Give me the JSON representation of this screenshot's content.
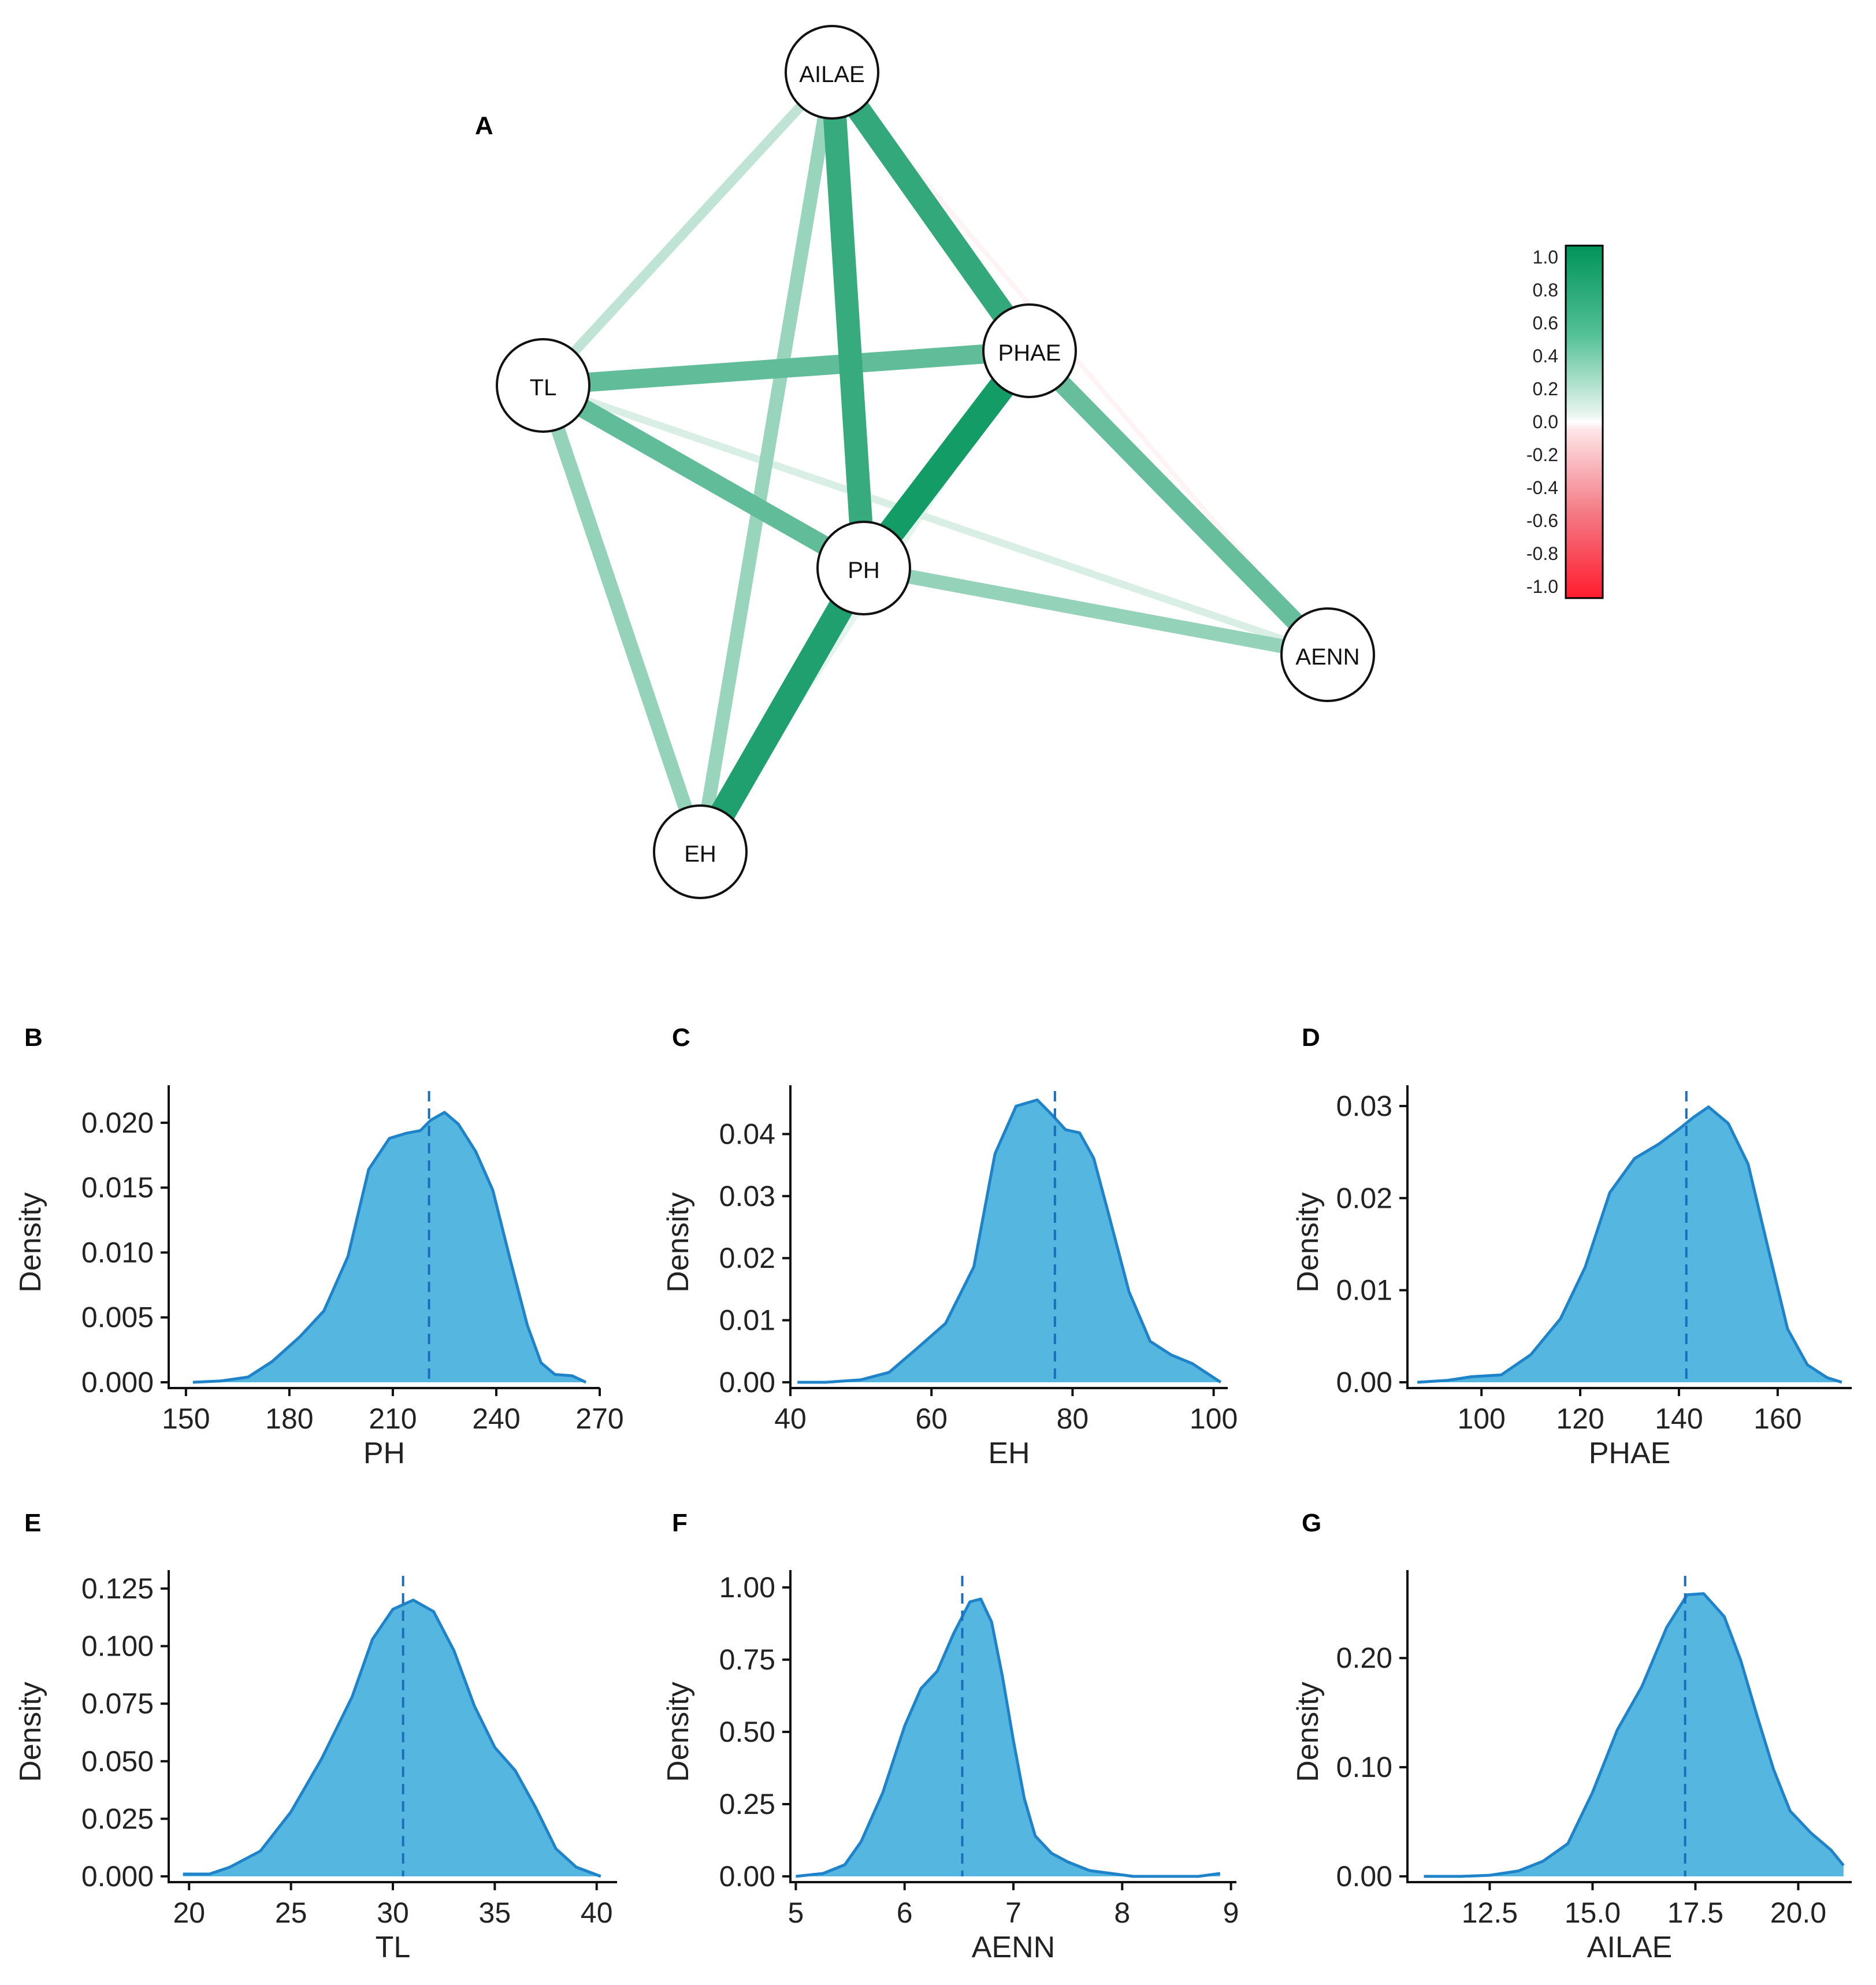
{
  "chart_data": [
    {
      "id": "A",
      "type": "network",
      "title": "A",
      "nodes": [
        "AILAE",
        "TL",
        "PHAE",
        "PH",
        "AENN",
        "EH"
      ],
      "edges": [
        {
          "from": "PHAE",
          "to": "PH",
          "r": 0.92
        },
        {
          "from": "PH",
          "to": "EH",
          "r": 0.88
        },
        {
          "from": "AILAE",
          "to": "PH",
          "r": 0.78
        },
        {
          "from": "AILAE",
          "to": "PHAE",
          "r": 0.8
        },
        {
          "from": "TL",
          "to": "PHAE",
          "r": 0.62
        },
        {
          "from": "TL",
          "to": "PH",
          "r": 0.62
        },
        {
          "from": "PHAE",
          "to": "AENN",
          "r": 0.6
        },
        {
          "from": "PH",
          "to": "AENN",
          "r": 0.42
        },
        {
          "from": "TL",
          "to": "EH",
          "r": 0.42
        },
        {
          "from": "AILAE",
          "to": "EH",
          "r": 0.4
        },
        {
          "from": "AILAE",
          "to": "TL",
          "r": 0.25
        },
        {
          "from": "TL",
          "to": "AENN",
          "r": 0.15
        },
        {
          "from": "PHAE",
          "to": "EH",
          "r": 0.1
        },
        {
          "from": "AILAE",
          "to": "AENN",
          "r": -0.05
        }
      ],
      "legend": {
        "ticks": [
          "1.0",
          "0.8",
          "0.6",
          "0.4",
          "0.2",
          "0.0",
          "-0.2",
          "-0.4",
          "-0.6",
          "-0.8",
          "-1.0"
        ],
        "pos_color": "#00935a",
        "neg_color": "#ff1c2e"
      }
    },
    {
      "id": "B",
      "type": "area",
      "title": "B",
      "xlabel": "PH",
      "ylabel": "Density",
      "xlim": [
        145,
        270
      ],
      "ylim": [
        0,
        0.022
      ],
      "xticks": [
        "150",
        "180",
        "210",
        "240",
        "270"
      ],
      "yticks": [
        "0.000",
        "0.005",
        "0.010",
        "0.015",
        "0.020"
      ],
      "mean": 220.5,
      "x": [
        152,
        160,
        168,
        175,
        183,
        190,
        197,
        203,
        209,
        214,
        218,
        221,
        225,
        229,
        234,
        239,
        244,
        249,
        253,
        257,
        262,
        266
      ],
      "y": [
        0.0,
        0.0001,
        0.0004,
        0.0016,
        0.0035,
        0.0055,
        0.0097,
        0.0164,
        0.0188,
        0.0192,
        0.0194,
        0.0202,
        0.0208,
        0.0199,
        0.0178,
        0.0148,
        0.0095,
        0.0044,
        0.0015,
        0.0006,
        0.0005,
        0.0
      ]
    },
    {
      "id": "C",
      "type": "area",
      "title": "C",
      "xlabel": "EH",
      "ylabel": "Density",
      "xlim": [
        40,
        102
      ],
      "ylim": [
        0,
        0.046
      ],
      "xticks": [
        "40",
        "60",
        "80",
        "100"
      ],
      "yticks": [
        "0.00",
        "0.01",
        "0.02",
        "0.03",
        "0.04"
      ],
      "mean": 77.5,
      "x": [
        41,
        45,
        50,
        54,
        58,
        62,
        66,
        69,
        72,
        75,
        77,
        79,
        81,
        83,
        85,
        88,
        91,
        94,
        97,
        101
      ],
      "y": [
        0.0,
        0.0,
        0.0004,
        0.0016,
        0.0055,
        0.0095,
        0.0186,
        0.0368,
        0.0445,
        0.0455,
        0.0432,
        0.0407,
        0.0402,
        0.0361,
        0.0276,
        0.0146,
        0.0066,
        0.0044,
        0.003,
        0.0
      ]
    },
    {
      "id": "D",
      "type": "area",
      "title": "D",
      "xlabel": "PHAE",
      "ylabel": "Density",
      "xlim": [
        85,
        175
      ],
      "ylim": [
        0,
        0.031
      ],
      "xticks": [
        "100",
        "120",
        "140",
        "160"
      ],
      "yticks": [
        "0.00",
        "0.01",
        "0.02",
        "0.03"
      ],
      "mean": 141.5,
      "x": [
        87,
        93,
        98,
        104,
        110,
        116,
        121,
        126,
        131,
        136,
        140,
        143,
        146,
        150,
        154,
        158,
        162,
        166,
        170,
        173
      ],
      "y": [
        0.0,
        0.0002,
        0.0006,
        0.0008,
        0.003,
        0.0069,
        0.0125,
        0.0206,
        0.0243,
        0.0259,
        0.0275,
        0.0288,
        0.0299,
        0.0281,
        0.0237,
        0.0147,
        0.0058,
        0.0019,
        0.0005,
        0.0
      ]
    },
    {
      "id": "E",
      "type": "area",
      "title": "E",
      "xlabel": "TL",
      "ylabel": "Density",
      "xlim": [
        19,
        41
      ],
      "ylim": [
        0,
        0.128
      ],
      "xticks": [
        "20",
        "25",
        "30",
        "35",
        "40"
      ],
      "yticks": [
        "0.000",
        "0.025",
        "0.050",
        "0.075",
        "0.100",
        "0.125"
      ],
      "mean": 30.5,
      "x": [
        19.7,
        21,
        22,
        23.5,
        25,
        26.5,
        28,
        29,
        30,
        31,
        32,
        33,
        34,
        35,
        36,
        37,
        38,
        39,
        40.2
      ],
      "y": [
        0.001,
        0.001,
        0.004,
        0.011,
        0.028,
        0.051,
        0.078,
        0.103,
        0.116,
        0.12,
        0.115,
        0.098,
        0.074,
        0.056,
        0.046,
        0.03,
        0.012,
        0.004,
        0.0
      ]
    },
    {
      "id": "F",
      "type": "area",
      "title": "F",
      "xlabel": "AENN",
      "ylabel": "Density",
      "xlim": [
        4.95,
        9.05
      ],
      "ylim": [
        0,
        1.02
      ],
      "xticks": [
        "5",
        "6",
        "7",
        "8",
        "9"
      ],
      "yticks": [
        "0.00",
        "0.25",
        "0.50",
        "0.75",
        "1.00"
      ],
      "mean": 6.53,
      "x": [
        5.0,
        5.25,
        5.45,
        5.6,
        5.8,
        6.0,
        6.15,
        6.3,
        6.45,
        6.6,
        6.7,
        6.8,
        6.9,
        7.0,
        7.1,
        7.2,
        7.35,
        7.5,
        7.7,
        7.9,
        8.1,
        8.4,
        8.7,
        8.9
      ],
      "y": [
        0.0,
        0.01,
        0.04,
        0.12,
        0.29,
        0.52,
        0.65,
        0.71,
        0.84,
        0.95,
        0.96,
        0.88,
        0.69,
        0.47,
        0.27,
        0.14,
        0.08,
        0.05,
        0.02,
        0.01,
        0.0,
        0.0,
        0.0,
        0.01
      ]
    },
    {
      "id": "G",
      "type": "area",
      "title": "G",
      "xlabel": "AILAE",
      "ylabel": "Density",
      "xlim": [
        10.5,
        21.3
      ],
      "ylim": [
        0,
        0.27
      ],
      "xticks": [
        "12.5",
        "15.0",
        "17.5",
        "20.0"
      ],
      "yticks": [
        "0.00",
        "0.10",
        "0.20"
      ],
      "mean": 17.25,
      "x": [
        10.9,
        11.8,
        12.5,
        13.2,
        13.8,
        14.4,
        15.0,
        15.6,
        16.2,
        16.8,
        17.3,
        17.7,
        18.2,
        18.6,
        19.0,
        19.4,
        19.8,
        20.3,
        20.8,
        21.1
      ],
      "y": [
        0.0,
        0.0,
        0.001,
        0.005,
        0.014,
        0.03,
        0.077,
        0.134,
        0.174,
        0.228,
        0.258,
        0.259,
        0.238,
        0.198,
        0.147,
        0.098,
        0.06,
        0.04,
        0.024,
        0.01
      ]
    }
  ]
}
